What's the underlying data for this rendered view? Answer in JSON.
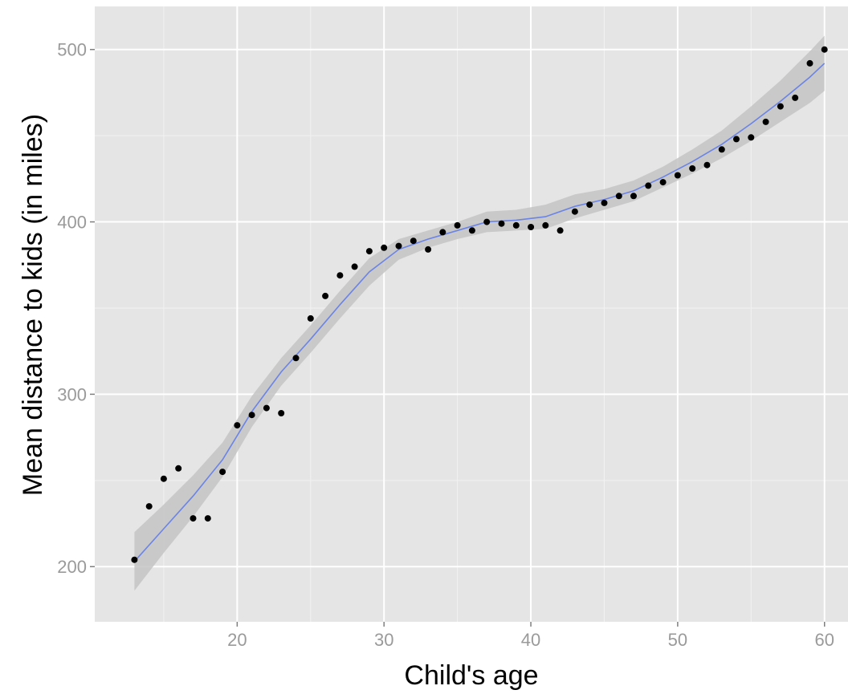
{
  "chart_data": {
    "type": "scatter",
    "title": "",
    "xlabel": "Child's age",
    "ylabel": "Mean distance to kids (in miles)",
    "xlim": [
      10.3,
      61.6
    ],
    "ylim": [
      168,
      525
    ],
    "x_ticks": [
      20,
      30,
      40,
      50,
      60
    ],
    "x_tick_labels": [
      "20",
      "30",
      "40",
      "50",
      "60"
    ],
    "y_ticks": [
      200,
      300,
      400,
      500
    ],
    "y_tick_labels": [
      "200",
      "300",
      "400",
      "500"
    ],
    "grid": true,
    "legend": "none",
    "series": [
      {
        "kind": "points",
        "x": [
          13,
          14,
          15,
          16,
          17,
          18,
          19,
          20,
          21,
          22,
          23,
          24,
          25,
          26,
          27,
          28,
          29,
          30,
          31,
          32,
          33,
          34,
          35,
          36,
          37,
          38,
          39,
          40,
          41,
          42,
          43,
          44,
          45,
          46,
          47,
          48,
          49,
          50,
          51,
          52,
          53,
          54,
          55,
          56,
          57,
          58,
          59,
          60
        ],
        "y": [
          204,
          235,
          251,
          257,
          228,
          228,
          255,
          282,
          288,
          292,
          289,
          321,
          344,
          357,
          369,
          374,
          383,
          385,
          386,
          389,
          384,
          394,
          398,
          395,
          400,
          399,
          398,
          397,
          398,
          395,
          406,
          410,
          411,
          415,
          415,
          421,
          423,
          427,
          431,
          433,
          442,
          448,
          449,
          458,
          467,
          472,
          492,
          500
        ]
      },
      {
        "kind": "smooth",
        "x": [
          13,
          15,
          17,
          19,
          21,
          23,
          25,
          27,
          29,
          31,
          33,
          35,
          37,
          39,
          41,
          43,
          45,
          47,
          49,
          51,
          53,
          55,
          57,
          59,
          60
        ],
        "y": [
          203,
          222,
          241,
          262,
          290,
          313,
          332,
          352,
          371,
          384,
          390,
          395,
          400,
          401,
          403,
          409,
          413,
          418,
          426,
          435,
          445,
          457,
          470,
          484,
          492
        ],
        "ymin": [
          186,
          208,
          229,
          252,
          281,
          305,
          324,
          344,
          363,
          378,
          385,
          390,
          394,
          395,
          396,
          402,
          407,
          412,
          420,
          428,
          437,
          447,
          458,
          469,
          476
        ],
        "ymax": [
          220,
          236,
          253,
          272,
          299,
          321,
          340,
          360,
          379,
          390,
          395,
          400,
          406,
          407,
          410,
          416,
          419,
          424,
          432,
          442,
          453,
          467,
          482,
          499,
          508
        ]
      }
    ],
    "colors": {
      "panel_background": "#e5e5e5",
      "grid_major": "#ffffff",
      "grid_minor": "#f2f2f2",
      "points": "#000000",
      "smooth_line": "#6b84e6",
      "ribbon": "#c4c4c4"
    }
  }
}
